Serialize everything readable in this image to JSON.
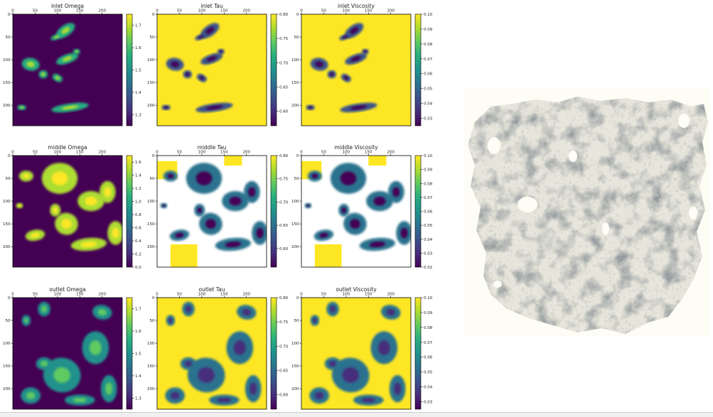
{
  "colors": {
    "viridis_low": "#440154",
    "viridis_mid": "#21918c",
    "viridis_high": "#fde725"
  },
  "chart_data": [
    {
      "type": "heatmap",
      "title": "inlet Omega",
      "x_ticks": [
        "0",
        "50",
        "100",
        "150",
        "200"
      ],
      "y_ticks": [
        "0",
        "50",
        "100",
        "150",
        "200"
      ],
      "colorbar_ticks": [
        "1.7",
        "1.6",
        "1.5",
        "1.4",
        "1.3"
      ],
      "colorbar_range": [
        1.25,
        1.75
      ]
    },
    {
      "type": "heatmap",
      "title": "inlet Tau",
      "x_ticks": [
        "0",
        "50",
        "100",
        "150",
        "200"
      ],
      "y_ticks": [
        "0",
        "50",
        "100",
        "150",
        "200"
      ],
      "colorbar_ticks": [
        "0.80",
        "0.75",
        "0.70",
        "0.65",
        "0.60"
      ],
      "colorbar_range": [
        0.57,
        0.8
      ]
    },
    {
      "type": "heatmap",
      "title": "inlet Viscosity",
      "x_ticks": [
        "0",
        "50",
        "100",
        "150",
        "200"
      ],
      "y_ticks": [
        "0",
        "50",
        "100",
        "150",
        "200"
      ],
      "colorbar_ticks": [
        "0.10",
        "0.09",
        "0.08",
        "0.07",
        "0.06",
        "0.05",
        "0.04",
        "0.03"
      ],
      "colorbar_range": [
        0.025,
        0.1
      ]
    },
    {
      "type": "heatmap",
      "title": "middle Omega",
      "x_ticks": [
        "0",
        "50",
        "100",
        "150",
        "200"
      ],
      "y_ticks": [
        "0",
        "50",
        "100",
        "150",
        "200"
      ],
      "colorbar_ticks": [
        "1.6",
        "1.4",
        "1.2",
        "1.0",
        "0.8",
        "0.6",
        "0.4",
        "0.2",
        "0.0"
      ],
      "colorbar_range": [
        0.0,
        1.7
      ]
    },
    {
      "type": "heatmap",
      "title": "middle Tau",
      "x_ticks": [
        "0",
        "50",
        "100",
        "150",
        "200"
      ],
      "y_ticks": [
        "0",
        "50",
        "100",
        "150",
        "200"
      ],
      "colorbar_ticks": [
        "0.80",
        "0.75",
        "0.70",
        "0.65",
        "0.60"
      ],
      "colorbar_range": [
        0.56,
        0.8
      ]
    },
    {
      "type": "heatmap",
      "title": "middle Viscosity",
      "x_ticks": [
        "0",
        "50",
        "100",
        "150",
        "200"
      ],
      "y_ticks": [
        "0",
        "50",
        "100",
        "150",
        "200"
      ],
      "colorbar_ticks": [
        "0.10",
        "0.09",
        "0.08",
        "0.07",
        "0.06",
        "0.05",
        "0.04",
        "0.03",
        "0.02"
      ],
      "colorbar_range": [
        0.02,
        0.1
      ]
    },
    {
      "type": "heatmap",
      "title": "outlet Omega",
      "x_ticks": [
        "0",
        "50",
        "100",
        "150",
        "200"
      ],
      "y_ticks": [
        "0",
        "50",
        "100",
        "150",
        "200"
      ],
      "colorbar_ticks": [
        "1.7",
        "1.6",
        "1.5",
        "1.4",
        "1.3"
      ],
      "colorbar_range": [
        1.25,
        1.75
      ]
    },
    {
      "type": "heatmap",
      "title": "outlet Tau",
      "x_ticks": [
        "0",
        "50",
        "100",
        "150",
        "200"
      ],
      "y_ticks": [
        "0",
        "50",
        "100",
        "150",
        "200"
      ],
      "colorbar_ticks": [
        "0.80",
        "0.75",
        "0.70",
        "0.65",
        "0.60"
      ],
      "colorbar_range": [
        0.57,
        0.8
      ]
    },
    {
      "type": "heatmap",
      "title": "outlet Viscosity",
      "x_ticks": [
        "0",
        "50",
        "100",
        "150",
        "200"
      ],
      "y_ticks": [
        "0",
        "50",
        "100",
        "150",
        "200"
      ],
      "colorbar_ticks": [
        "0.10",
        "0.09",
        "0.08",
        "0.07",
        "0.06",
        "0.05",
        "0.04",
        "0.03"
      ],
      "colorbar_range": [
        0.025,
        0.1
      ]
    }
  ],
  "render_3d": {
    "colors": {
      "surface_light": "#e8e6dc",
      "surface_mid": "#a8aaa2",
      "surface_dark": "#4e5558",
      "background": "#fdfcf5"
    }
  }
}
